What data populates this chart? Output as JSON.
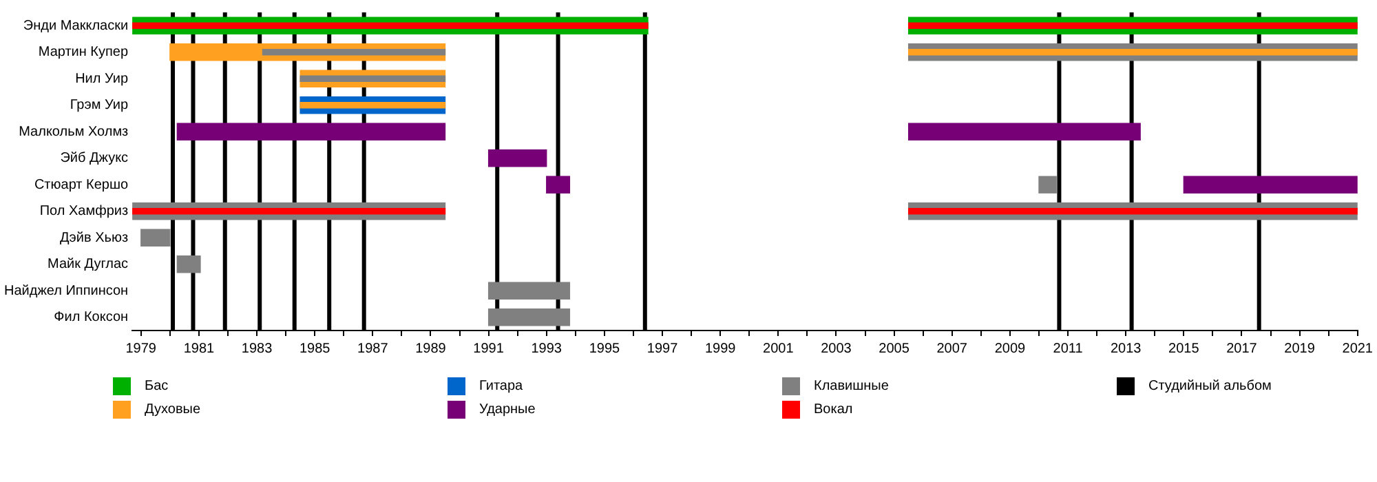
{
  "chart_data": {
    "type": "bar",
    "orientation": "horizontal",
    "legend": "bottom",
    "categories": [
      "Энди Маккласки",
      "Мартин Купер",
      "Нил Уир",
      "Грэм Уир",
      "Малкольм Холмз",
      "Эйб Джукс",
      "Стюарт Кершо",
      "Пол Хамфриз",
      "Дэйв Хьюз",
      "Майк Дуглас",
      "Найджел Иппинсон",
      "Фил Коксон"
    ],
    "xlim": [
      1978.7,
      2021
    ],
    "xticks": [
      1979,
      {
        "value": 1980,
        "label": null
      },
      1981,
      {
        "value": 1982,
        "label": null
      },
      1983,
      {
        "value": 1984,
        "label": null
      },
      1985,
      {
        "value": 1986,
        "label": null
      },
      1987,
      {
        "value": 1988,
        "label": null
      },
      1989,
      {
        "value": 1990,
        "label": null
      },
      1991,
      {
        "value": 1992,
        "label": null
      },
      1993,
      {
        "value": 1994,
        "label": null
      },
      1995,
      {
        "value": 1996,
        "label": null
      },
      1997,
      {
        "value": 1998,
        "label": null
      },
      1999,
      {
        "value": 2000,
        "label": null
      },
      2001,
      {
        "value": 2002,
        "label": null
      },
      2003,
      {
        "value": 2004,
        "label": null
      },
      2005,
      {
        "value": 2006,
        "label": null
      },
      2007,
      {
        "value": 2008,
        "label": null
      },
      2009,
      {
        "value": 2010,
        "label": null
      },
      2011,
      {
        "value": 2012,
        "label": null
      },
      2013,
      {
        "value": 2014,
        "label": null
      },
      2015,
      {
        "value": 2016,
        "label": null
      },
      2017,
      {
        "value": 2018,
        "label": null
      },
      2019,
      {
        "value": 2020,
        "label": null
      },
      2021
    ],
    "series": [
      {
        "name": "Бас",
        "color": "#00b000",
        "base": [
          1978.7,
          null,
          null,
          null,
          null,
          null,
          null,
          null,
          null,
          null,
          null,
          null
        ],
        "values": [
          17.8,
          null,
          null,
          null,
          null,
          null,
          null,
          null,
          null,
          null,
          null,
          null
        ]
      },
      {
        "color": "#00b000",
        "base": [
          2005.5,
          null,
          null,
          null,
          null,
          null,
          null,
          null,
          null,
          null,
          null,
          null
        ],
        "values": [
          15.5,
          null,
          null,
          null,
          null,
          null,
          null,
          null,
          null,
          null,
          null,
          null
        ]
      },
      {
        "name": "Духовые",
        "color": "#ffa020",
        "base": [
          null,
          1980,
          1984.5,
          null,
          null,
          null,
          null,
          null,
          null,
          null,
          null,
          null
        ],
        "values": [
          null,
          9.5,
          5,
          null,
          null,
          null,
          null,
          null,
          null,
          null,
          null,
          null
        ]
      },
      {
        "name": "Гитара",
        "color": "#0066cc",
        "base": [
          null,
          null,
          null,
          1984.5,
          null,
          null,
          null,
          null,
          null,
          null,
          null,
          null
        ],
        "values": [
          null,
          null,
          null,
          5,
          null,
          null,
          null,
          null,
          null,
          null,
          null,
          null
        ]
      },
      {
        "name": "Ударные",
        "color": "#770077",
        "base": [
          null,
          null,
          null,
          null,
          1980.25,
          1991,
          1993,
          null,
          null,
          null,
          null,
          null
        ],
        "values": [
          null,
          null,
          null,
          null,
          9.25,
          2,
          0.8,
          null,
          null,
          null,
          null,
          null
        ]
      },
      {
        "color": "#770077",
        "base": [
          null,
          null,
          null,
          null,
          2005.5,
          null,
          2015,
          null,
          null,
          null,
          null,
          null
        ],
        "values": [
          null,
          null,
          null,
          null,
          8,
          null,
          6,
          null,
          null,
          null,
          null,
          null
        ]
      },
      {
        "name": "Клавишные",
        "color": "#808080",
        "base": [
          null,
          2005.5,
          null,
          null,
          null,
          null,
          null,
          1978.7,
          1979,
          1980.25,
          1991,
          1991
        ],
        "values": [
          null,
          15.5,
          null,
          null,
          null,
          null,
          null,
          10.8,
          1,
          0.8,
          2.8,
          2.8
        ]
      },
      {
        "color": "#808080",
        "base": [
          null,
          null,
          null,
          null,
          null,
          null,
          2010,
          2005.5,
          null,
          null,
          null,
          null
        ],
        "values": [
          null,
          null,
          null,
          null,
          null,
          null,
          0.6,
          15.5,
          null,
          null,
          null,
          null
        ]
      },
      {
        "name": "Вокал",
        "color": "#ff0000",
        "base": [
          1978.7,
          null,
          null,
          null,
          null,
          null,
          null,
          1978.7,
          null,
          null,
          null,
          null
        ],
        "values": [
          17.8,
          null,
          null,
          null,
          null,
          null,
          null,
          10.8,
          null,
          null,
          null,
          null
        ]
      },
      {
        "color": "#ff0000",
        "base": [
          2005.5,
          null,
          null,
          null,
          null,
          null,
          null,
          2005.5,
          null,
          null,
          null,
          null
        ],
        "values": [
          15.5,
          null,
          null,
          null,
          null,
          null,
          null,
          15.5,
          null,
          null,
          null,
          null
        ]
      },
      {
        "color": "#808080",
        "base": [
          null,
          1983.2,
          1984.5,
          null,
          null,
          null,
          null,
          null,
          null,
          null,
          null,
          null
        ],
        "values": [
          null,
          6.3,
          5,
          null,
          null,
          null,
          null,
          null,
          null,
          null,
          null,
          null
        ]
      },
      {
        "color": "#ffa020",
        "base": [
          null,
          2005.5,
          null,
          1984.5,
          null,
          null,
          null,
          null,
          null,
          null,
          null,
          null
        ],
        "values": [
          null,
          15.5,
          null,
          5,
          null,
          null,
          null,
          null,
          null,
          null,
          null,
          null
        ]
      }
    ],
    "ref_lines": [
      {
        "axis": "x",
        "value": 1980.1,
        "label": "Студийный альбом",
        "color": "#000000"
      },
      {
        "axis": "x",
        "value": 1980.8,
        "color": "#000000"
      },
      {
        "axis": "x",
        "value": 1981.9,
        "color": "#000000"
      },
      {
        "axis": "x",
        "value": 1983.1,
        "color": "#000000"
      },
      {
        "axis": "x",
        "value": 1984.3,
        "color": "#000000"
      },
      {
        "axis": "x",
        "value": 1985.5,
        "color": "#000000"
      },
      {
        "axis": "x",
        "value": 1986.7,
        "color": "#000000"
      },
      {
        "axis": "x",
        "value": 1991.3,
        "color": "#000000"
      },
      {
        "axis": "x",
        "value": 1993.4,
        "color": "#000000"
      },
      {
        "axis": "x",
        "value": 1996.4,
        "color": "#000000"
      },
      {
        "axis": "x",
        "value": 2010.7,
        "color": "#000000"
      },
      {
        "axis": "x",
        "value": 2013.2,
        "color": "#000000"
      },
      {
        "axis": "x",
        "value": 2017.6,
        "color": "#000000"
      }
    ]
  }
}
